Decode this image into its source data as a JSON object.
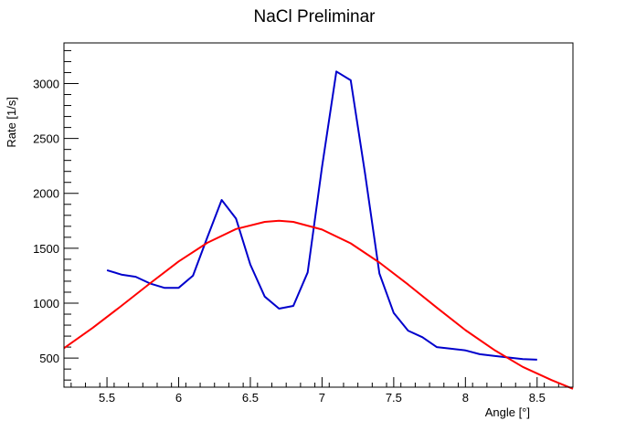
{
  "chart_data": {
    "type": "line",
    "title": "NaCl Preliminar",
    "xlabel": "Angle [°]",
    "ylabel": "Rate [1/s]",
    "xlim": [
      5.2,
      8.75
    ],
    "ylim": [
      235,
      3370
    ],
    "x_ticks": [
      5.5,
      6,
      6.5,
      7,
      7.5,
      8,
      8.5
    ],
    "x_tick_labels": [
      "5.5",
      "6",
      "6.5",
      "7",
      "7.5",
      "8",
      "8.5"
    ],
    "y_ticks": [
      500,
      1000,
      1500,
      2000,
      2500,
      3000
    ],
    "y_tick_labels": [
      "500",
      "1000",
      "1500",
      "2000",
      "2500",
      "3000"
    ],
    "grid": false,
    "series": [
      {
        "color": "#0000cc",
        "x": [
          5.5,
          5.6,
          5.7,
          5.8,
          5.9,
          6.0,
          6.1,
          6.2,
          6.3,
          6.4,
          6.5,
          6.6,
          6.7,
          6.8,
          6.9,
          7.0,
          7.1,
          7.2,
          7.3,
          7.4,
          7.5,
          7.6,
          7.7,
          7.8,
          7.9,
          8.0,
          8.1,
          8.2,
          8.3,
          8.4,
          8.5
        ],
        "values": [
          1300,
          1260,
          1240,
          1180,
          1140,
          1140,
          1250,
          1600,
          1940,
          1770,
          1350,
          1060,
          950,
          975,
          1280,
          2240,
          3110,
          3030,
          2180,
          1270,
          910,
          750,
          690,
          600,
          585,
          570,
          535,
          520,
          505,
          490,
          485
        ]
      },
      {
        "color": "#ff0000",
        "x": [
          5.2,
          5.4,
          5.6,
          5.8,
          6.0,
          6.2,
          6.4,
          6.6,
          6.7,
          6.8,
          7.0,
          7.2,
          7.4,
          7.6,
          7.8,
          8.0,
          8.2,
          8.4,
          8.6,
          8.75
        ],
        "values": [
          590,
          775,
          975,
          1180,
          1380,
          1550,
          1675,
          1740,
          1750,
          1740,
          1670,
          1545,
          1370,
          1170,
          960,
          755,
          575,
          420,
          300,
          220
        ]
      }
    ]
  }
}
